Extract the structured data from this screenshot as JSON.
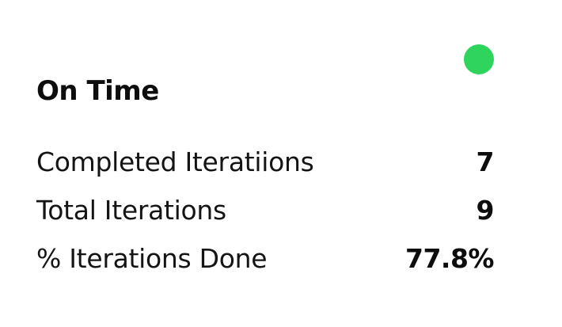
{
  "card": {
    "title": "On Time",
    "status_indicator_color": "#2fd45c"
  },
  "metrics": [
    {
      "label": "Completed Iteratiions",
      "value": "7"
    },
    {
      "label": "Total Iterations",
      "value": "9"
    },
    {
      "label": "% Iterations Done",
      "value": "77.8%"
    }
  ]
}
